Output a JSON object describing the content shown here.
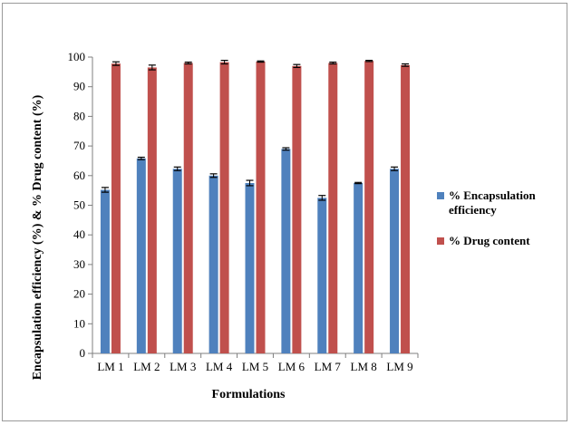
{
  "chart_data": {
    "type": "bar",
    "title": "",
    "xlabel": "Formulations",
    "ylabel": "Encapsulation efficiency (%) & % Drug content (%)",
    "ylim": [
      0,
      100
    ],
    "yticks": [
      0,
      10,
      20,
      30,
      40,
      50,
      60,
      70,
      80,
      90,
      100
    ],
    "categories": [
      "LM 1",
      "LM 2",
      "LM 3",
      "LM 4",
      "LM 5",
      "LM 6",
      "LM 7",
      "LM 8",
      "LM 9"
    ],
    "series": [
      {
        "name": "% Encapsulation efficiency",
        "legend_lines": [
          "% Encapsulation",
          "efficiency"
        ],
        "color": "#4f81bd",
        "values": [
          55.2,
          65.8,
          62.3,
          60.0,
          57.5,
          69.0,
          52.5,
          57.5,
          62.3
        ],
        "errors": [
          0.8,
          0.4,
          0.6,
          0.6,
          0.9,
          0.4,
          0.8,
          0.2,
          0.6
        ]
      },
      {
        "name": "% Drug content",
        "legend_lines": [
          "% Drug content"
        ],
        "color": "#c0504d",
        "values": [
          97.8,
          96.5,
          98.0,
          98.3,
          98.5,
          97.0,
          98.0,
          98.7,
          97.3
        ],
        "errors": [
          0.6,
          0.8,
          0.3,
          0.6,
          0.2,
          0.5,
          0.3,
          0.2,
          0.4
        ]
      }
    ],
    "grid": false,
    "legend_position": "right",
    "error_bars": true
  }
}
